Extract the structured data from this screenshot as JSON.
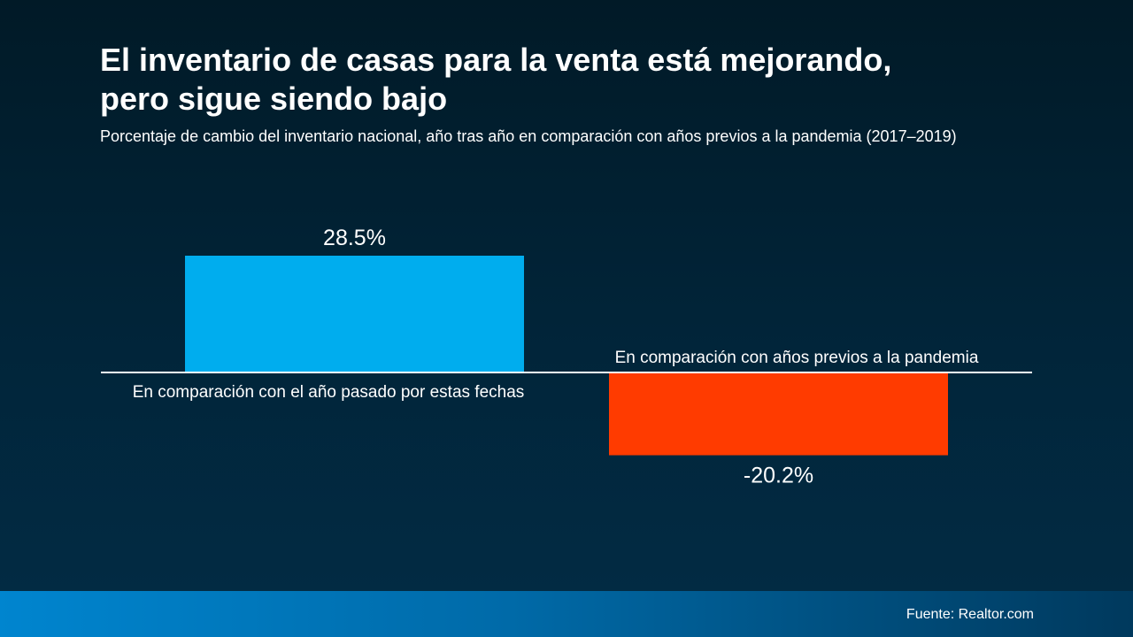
{
  "chart_data": {
    "type": "bar",
    "title": "El inventario de casas para la venta está mejorando, pero sigue siendo bajo",
    "title_lines": [
      "El inventario de casas para la venta está mejorando,",
      "pero sigue siendo bajo"
    ],
    "subtitle": "Porcentaje de cambio del inventario nacional, año tras año en comparación con años previos a la pandemia (2017–2019)",
    "categories": [
      "En comparación con el año pasado por estas fechas",
      "En comparación con años previos a la pandemia"
    ],
    "values": [
      28.5,
      -20.2
    ],
    "data_labels": [
      "28.5%",
      "-20.2%"
    ],
    "colors": [
      "#00adee",
      "#ff3b00"
    ],
    "ylim": [
      -30,
      30
    ],
    "grid": false,
    "xlabel": "",
    "ylabel": ""
  },
  "footer": {
    "source": "Fuente: Realtor.com"
  }
}
